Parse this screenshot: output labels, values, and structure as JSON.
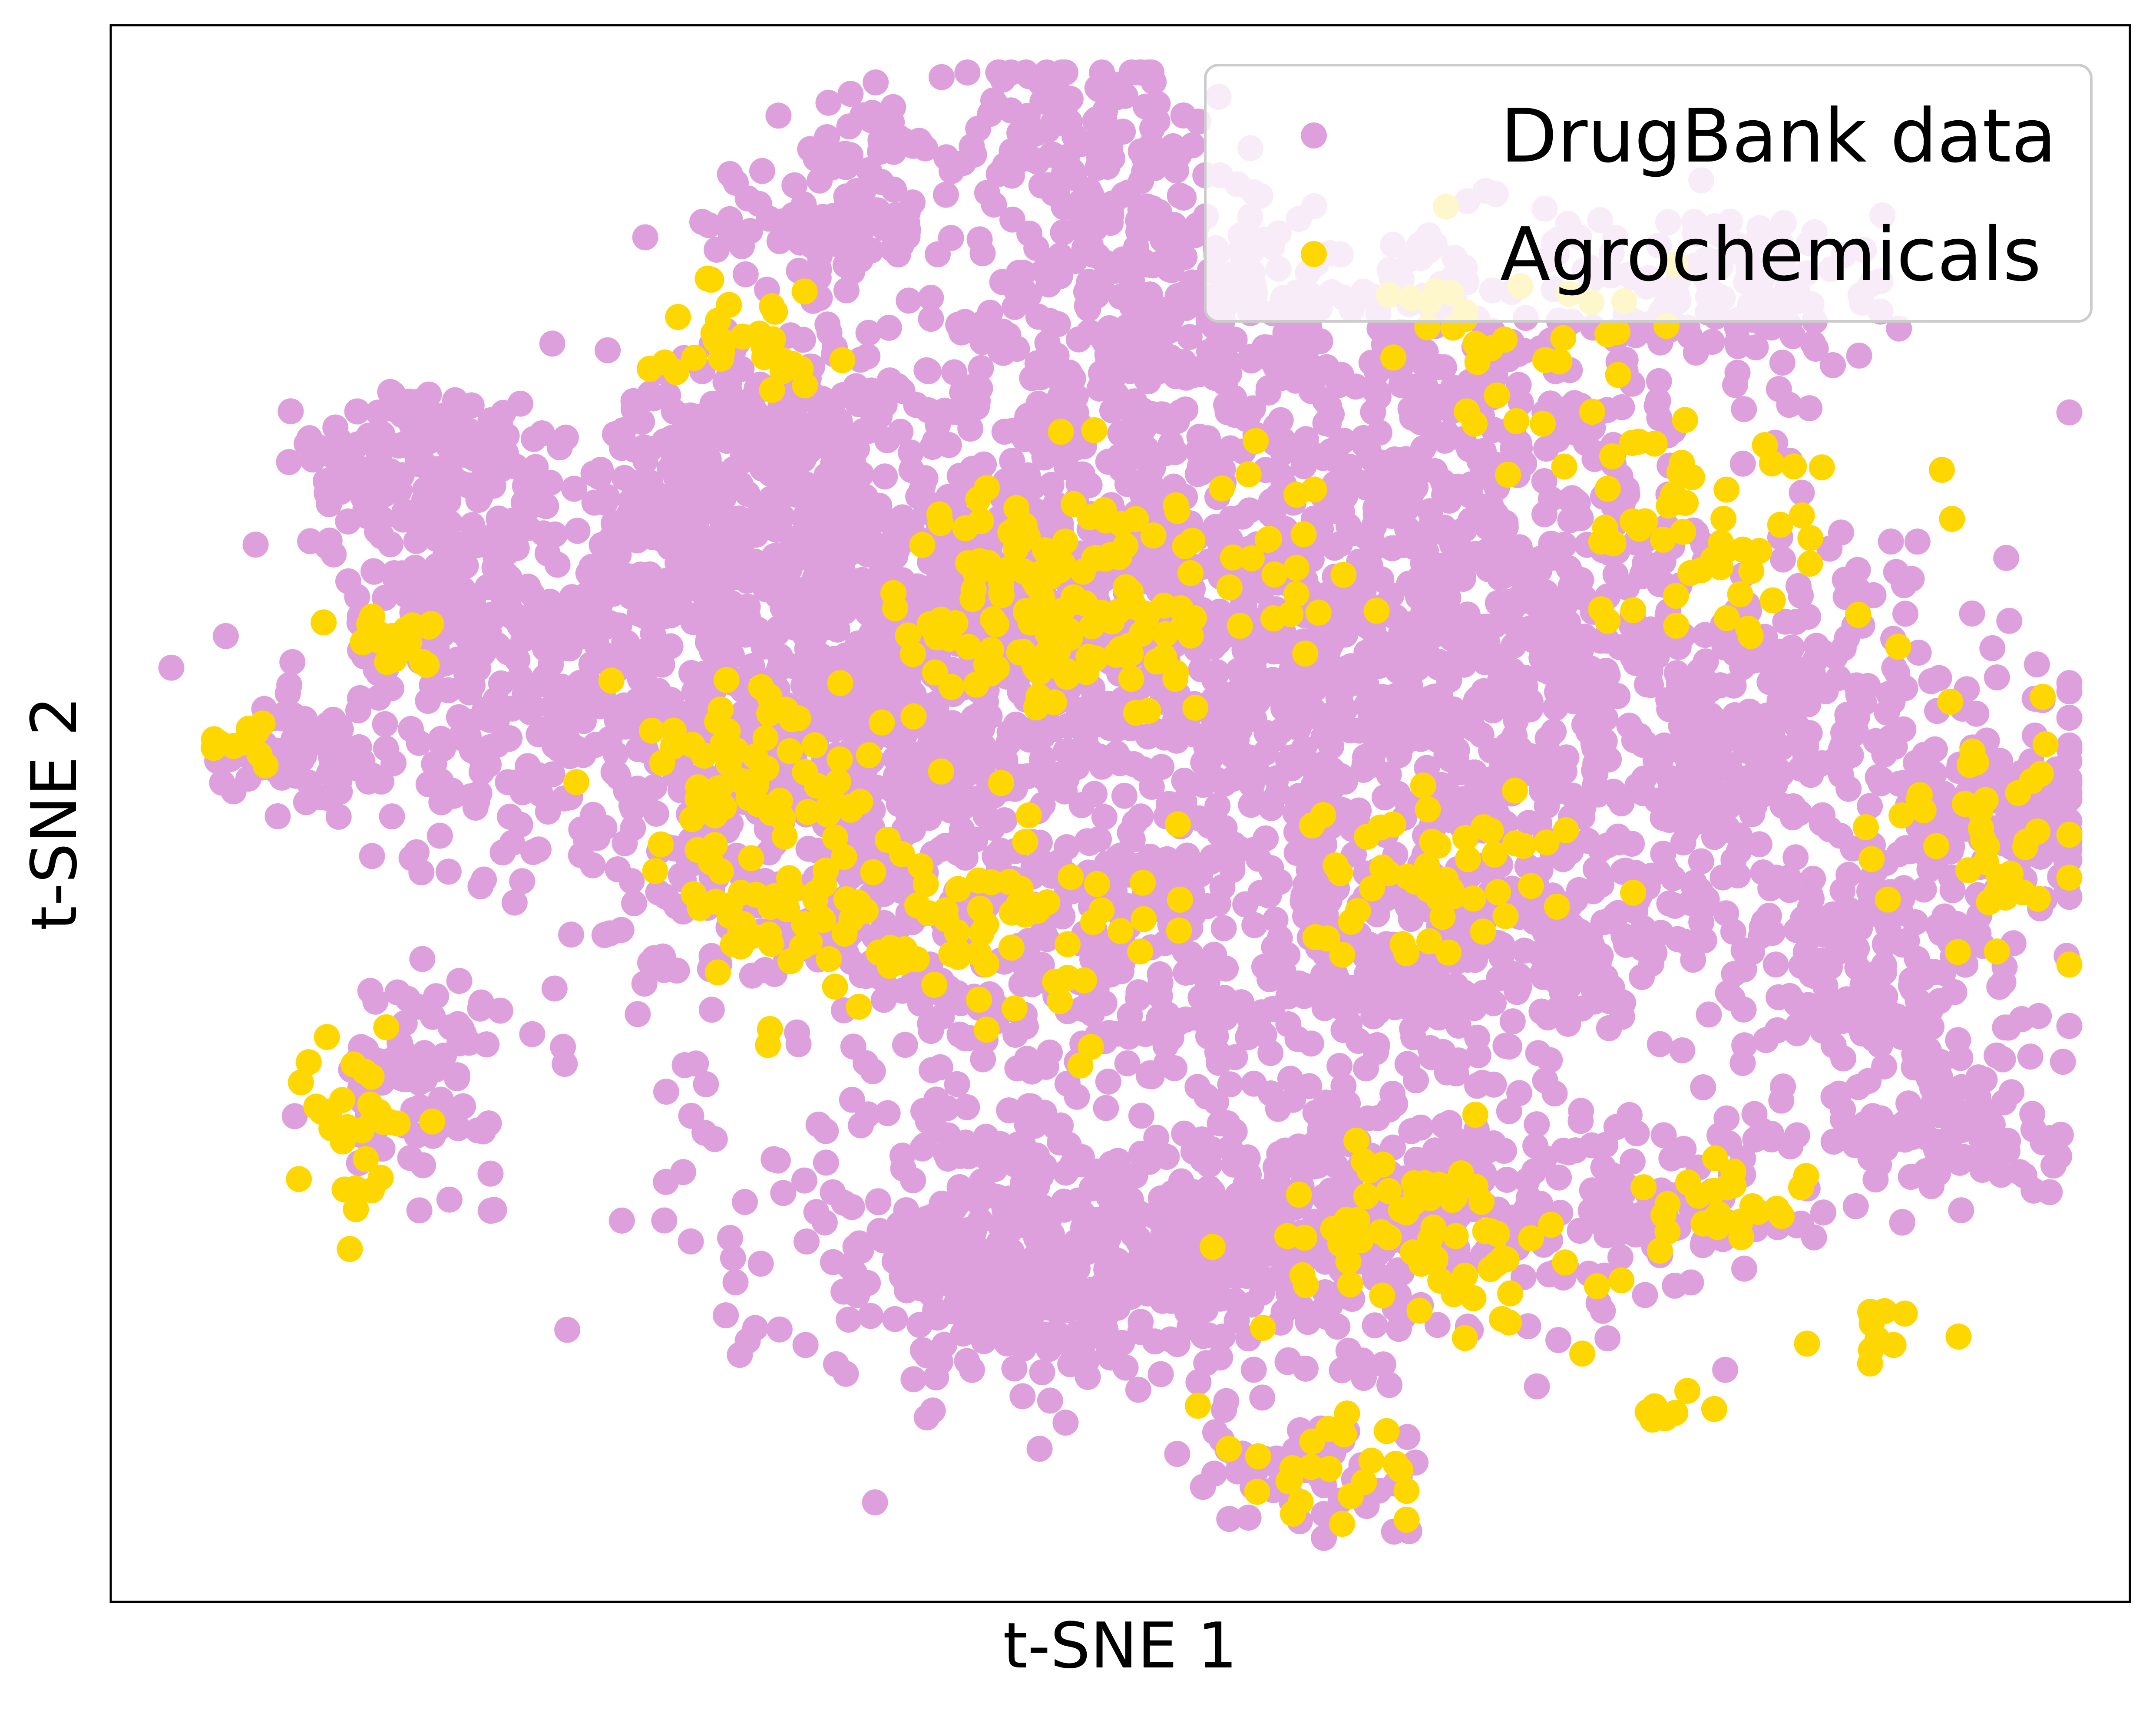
{
  "chart_data": {
    "type": "scatter",
    "title": "",
    "xlabel": "t-SNE 1",
    "ylabel": "t-SNE 2",
    "xlim": [
      0,
      100
    ],
    "ylim": [
      0,
      100
    ],
    "grid": false,
    "ticks_shown": false,
    "legend_position": "top-right",
    "series": [
      {
        "name": "DrugBank data",
        "color": "#dda0dd",
        "clusters": [
          {
            "x": 35,
            "y": 55,
            "sx": 8,
            "sy": 9,
            "n": 900
          },
          {
            "x": 47,
            "y": 66,
            "sx": 8,
            "sy": 7,
            "n": 550
          },
          {
            "x": 55,
            "y": 42,
            "sx": 9,
            "sy": 8,
            "n": 520
          },
          {
            "x": 70,
            "y": 58,
            "sx": 8,
            "sy": 8,
            "n": 450
          },
          {
            "x": 82,
            "y": 55,
            "sx": 6,
            "sy": 6,
            "n": 260
          },
          {
            "x": 66,
            "y": 76,
            "sx": 7,
            "sy": 5,
            "n": 300
          },
          {
            "x": 52,
            "y": 82,
            "sx": 5,
            "sy": 4,
            "n": 200
          },
          {
            "x": 48,
            "y": 92,
            "sx": 3,
            "sy": 4,
            "n": 140
          },
          {
            "x": 55,
            "y": 22,
            "sx": 6,
            "sy": 4,
            "n": 260
          },
          {
            "x": 65,
            "y": 26,
            "sx": 5,
            "sy": 3,
            "n": 160
          },
          {
            "x": 45,
            "y": 20,
            "sx": 4,
            "sy": 3,
            "n": 120
          },
          {
            "x": 18,
            "y": 60,
            "sx": 4,
            "sy": 5,
            "n": 220
          },
          {
            "x": 15,
            "y": 72,
            "sx": 3,
            "sy": 2.5,
            "n": 130
          },
          {
            "x": 32,
            "y": 75,
            "sx": 4,
            "sy": 3,
            "n": 140
          },
          {
            "x": 10,
            "y": 54,
            "sx": 2,
            "sy": 1.5,
            "n": 60
          },
          {
            "x": 15,
            "y": 33,
            "sx": 2,
            "sy": 3,
            "n": 80
          },
          {
            "x": 87,
            "y": 40,
            "sx": 4,
            "sy": 4,
            "n": 160
          },
          {
            "x": 93,
            "y": 50,
            "sx": 3,
            "sy": 3,
            "n": 110
          },
          {
            "x": 91,
            "y": 30,
            "sx": 3,
            "sy": 3,
            "n": 110
          },
          {
            "x": 81,
            "y": 83,
            "sx": 4,
            "sy": 3,
            "n": 110
          },
          {
            "x": 35,
            "y": 87,
            "sx": 3,
            "sy": 2,
            "n": 70
          },
          {
            "x": 38,
            "y": 93,
            "sx": 2,
            "sy": 1.5,
            "n": 35
          },
          {
            "x": 42,
            "y": 24,
            "sx": 6,
            "sy": 5,
            "n": 200
          },
          {
            "x": 29,
            "y": 68,
            "sx": 4,
            "sy": 4,
            "n": 160
          },
          {
            "x": 59,
            "y": 8,
            "sx": 3,
            "sy": 2,
            "n": 60
          },
          {
            "x": 76,
            "y": 25,
            "sx": 4,
            "sy": 3,
            "n": 90
          },
          {
            "x": 62,
            "y": 60,
            "sx": 5,
            "sy": 5,
            "n": 200
          },
          {
            "x": 69,
            "y": 41,
            "sx": 4,
            "sy": 3,
            "n": 140
          }
        ]
      },
      {
        "name": "Agrochemicals",
        "color": "#ffd700",
        "clusters": [
          {
            "x": 47,
            "y": 63,
            "sx": 4,
            "sy": 4,
            "n": 140
          },
          {
            "x": 32,
            "y": 53,
            "sx": 3,
            "sy": 3,
            "n": 60
          },
          {
            "x": 37,
            "y": 43,
            "sx": 5,
            "sy": 3,
            "n": 80
          },
          {
            "x": 65,
            "y": 23,
            "sx": 4,
            "sy": 3,
            "n": 70
          },
          {
            "x": 78,
            "y": 69,
            "sx": 4,
            "sy": 4,
            "n": 60
          },
          {
            "x": 66,
            "y": 46,
            "sx": 3,
            "sy": 3,
            "n": 50
          },
          {
            "x": 12,
            "y": 31,
            "sx": 1.5,
            "sy": 3,
            "n": 30
          },
          {
            "x": 14,
            "y": 61,
            "sx": 1.5,
            "sy": 1,
            "n": 20
          },
          {
            "x": 6,
            "y": 55,
            "sx": 1,
            "sy": 0.8,
            "n": 10
          },
          {
            "x": 32,
            "y": 80,
            "sx": 2,
            "sy": 2,
            "n": 30
          },
          {
            "x": 92,
            "y": 49,
            "sx": 3,
            "sy": 3,
            "n": 40
          },
          {
            "x": 60,
            "y": 8,
            "sx": 3,
            "sy": 2,
            "n": 25
          },
          {
            "x": 71,
            "y": 79,
            "sx": 4,
            "sy": 3,
            "n": 30
          },
          {
            "x": 55,
            "y": 65,
            "sx": 4,
            "sy": 4,
            "n": 30
          },
          {
            "x": 48,
            "y": 41,
            "sx": 3,
            "sy": 3,
            "n": 30
          },
          {
            "x": 80,
            "y": 25,
            "sx": 2,
            "sy": 1.5,
            "n": 25
          },
          {
            "x": 88,
            "y": 17,
            "sx": 2,
            "sy": 1,
            "n": 10
          },
          {
            "x": 77,
            "y": 12,
            "sx": 1,
            "sy": 1,
            "n": 8
          }
        ]
      }
    ]
  }
}
